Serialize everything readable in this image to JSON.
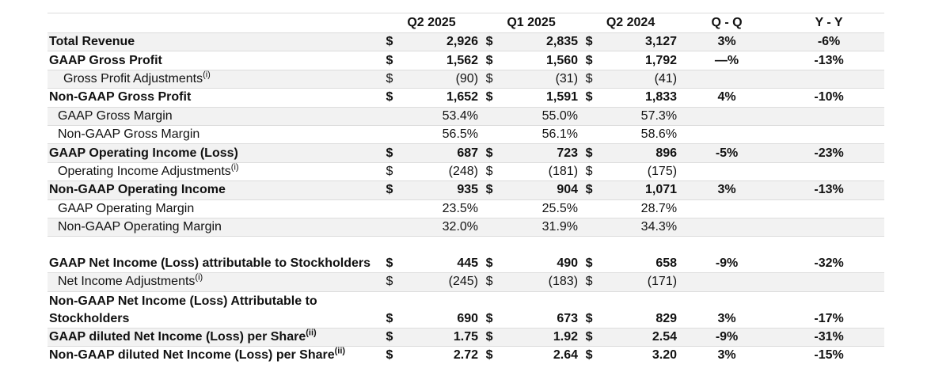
{
  "columns": [
    "Q2 2025",
    "Q1 2025",
    "Q2 2024",
    "Q - Q",
    "Y - Y"
  ],
  "rows": [
    {
      "label": "Total Revenue",
      "sup": "",
      "bold": true,
      "indent": 0,
      "d1": "$",
      "v1": "2,926",
      "d2": "$",
      "v2": "2,835",
      "d3": "$",
      "v3": "3,127",
      "qq": "3%",
      "yy": "-6%",
      "alt": true
    },
    {
      "label": "GAAP Gross Profit",
      "sup": "",
      "bold": true,
      "indent": 0,
      "d1": "$",
      "v1": "1,562",
      "d2": "$",
      "v2": "1,560",
      "d3": "$",
      "v3": "1,792",
      "qq": "—%",
      "yy": "-13%",
      "alt": false
    },
    {
      "label": "Gross Profit Adjustments",
      "sup": "(i)",
      "bold": false,
      "indent": 1,
      "d1": "$",
      "v1": "(90)",
      "d2": "$",
      "v2": "(31)",
      "d3": "$",
      "v3": "(41)",
      "qq": "",
      "yy": "",
      "alt": true
    },
    {
      "label": "Non-GAAP Gross Profit",
      "sup": "",
      "bold": true,
      "indent": 0,
      "d1": "$",
      "v1": "1,652",
      "d2": "$",
      "v2": "1,591",
      "d3": "$",
      "v3": "1,833",
      "qq": "4%",
      "yy": "-10%",
      "alt": false
    },
    {
      "label": "GAAP Gross Margin",
      "sup": "",
      "bold": false,
      "indent": 2,
      "d1": "",
      "v1": "53.4%",
      "d2": "",
      "v2": "55.0%",
      "d3": "",
      "v3": "57.3%",
      "qq": "",
      "yy": "",
      "alt": true
    },
    {
      "label": "Non-GAAP Gross Margin",
      "sup": "",
      "bold": false,
      "indent": 2,
      "d1": "",
      "v1": "56.5%",
      "d2": "",
      "v2": "56.1%",
      "d3": "",
      "v3": "58.6%",
      "qq": "",
      "yy": "",
      "alt": false
    },
    {
      "label": "GAAP Operating Income (Loss)",
      "sup": "",
      "bold": true,
      "indent": 0,
      "d1": "$",
      "v1": "687",
      "d2": "$",
      "v2": "723",
      "d3": "$",
      "v3": "896",
      "qq": "-5%",
      "yy": "-23%",
      "alt": true
    },
    {
      "label": "Operating Income Adjustments",
      "sup": "(i)",
      "bold": false,
      "indent": 2,
      "d1": "$",
      "v1": "(248)",
      "d2": "$",
      "v2": "(181)",
      "d3": "$",
      "v3": "(175)",
      "qq": "",
      "yy": "",
      "alt": false
    },
    {
      "label": "Non-GAAP Operating Income",
      "sup": "",
      "bold": true,
      "indent": 0,
      "d1": "$",
      "v1": "935",
      "d2": "$",
      "v2": "904",
      "d3": "$",
      "v3": "1,071",
      "qq": "3%",
      "yy": "-13%",
      "alt": true
    },
    {
      "label": "GAAP Operating Margin",
      "sup": "",
      "bold": false,
      "indent": 2,
      "d1": "",
      "v1": "23.5%",
      "d2": "",
      "v2": "25.5%",
      "d3": "",
      "v3": "28.7%",
      "qq": "",
      "yy": "",
      "alt": false
    },
    {
      "label": "Non-GAAP Operating Margin",
      "sup": "",
      "bold": false,
      "indent": 2,
      "d1": "",
      "v1": "32.0%",
      "d2": "",
      "v2": "31.9%",
      "d3": "",
      "v3": "34.3%",
      "qq": "",
      "yy": "",
      "alt": true
    },
    {
      "label": "GAAP Net Income (Loss) attributable to Stockholders",
      "sup": "",
      "bold": true,
      "indent": 0,
      "tall": true,
      "d1": "$",
      "v1": "445",
      "d2": "$",
      "v2": "490",
      "d3": "$",
      "v3": "658",
      "qq": "-9%",
      "yy": "-32%",
      "alt": false
    },
    {
      "label": "Net Income Adjustments",
      "sup": "(i)",
      "bold": false,
      "indent": 2,
      "d1": "$",
      "v1": "(245)",
      "d2": "$",
      "v2": "(183)",
      "d3": "$",
      "v3": "(171)",
      "qq": "",
      "yy": "",
      "alt": true
    },
    {
      "label": "Non-GAAP Net Income (Loss) Attributable to Stockholders",
      "sup": "",
      "bold": true,
      "indent": 0,
      "tall": true,
      "d1": "$",
      "v1": "690",
      "d2": "$",
      "v2": "673",
      "d3": "$",
      "v3": "829",
      "qq": "3%",
      "yy": "-17%",
      "alt": false
    },
    {
      "label": "GAAP diluted Net Income (Loss) per Share",
      "sup": "(ii)",
      "bold": true,
      "indent": 0,
      "d1": "$",
      "v1": "1.75",
      "d2": "$",
      "v2": "1.92",
      "d3": "$",
      "v3": "2.54",
      "qq": "-9%",
      "yy": "-31%",
      "alt": true
    },
    {
      "label": "Non-GAAP diluted Net Income (Loss) per Share",
      "sup": "(ii)",
      "bold": true,
      "indent": 0,
      "d1": "$",
      "v1": "2.72",
      "d2": "$",
      "v2": "2.64",
      "d3": "$",
      "v3": "3.20",
      "qq": "3%",
      "yy": "-15%",
      "alt": false
    }
  ]
}
